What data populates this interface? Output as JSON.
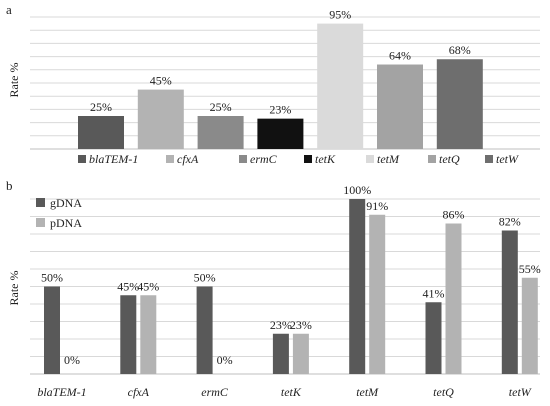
{
  "chart_data": [
    {
      "panel": "a",
      "type": "bar",
      "ylabel": "Rate %",
      "ylim": [
        0,
        100
      ],
      "grid": true,
      "legend_position": "bottom",
      "categories": [
        "blaTEM-1",
        "cfxA",
        "ermC",
        "tetK",
        "tetM",
        "tetQ",
        "tetW"
      ],
      "values": [
        25,
        45,
        25,
        23,
        95,
        64,
        68
      ],
      "value_labels": [
        "25%",
        "45%",
        "25%",
        "23%",
        "95%",
        "64%",
        "68%"
      ],
      "colors": [
        "#595959",
        "#b3b3b3",
        "#8a8a8a",
        "#111111",
        "#dadada",
        "#a3a3a3",
        "#6e6e6e"
      ]
    },
    {
      "panel": "b",
      "type": "bar",
      "ylabel": "Rate %",
      "ylim": [
        0,
        100
      ],
      "grid": true,
      "legend_position": "top-left",
      "categories": [
        "blaTEM-1",
        "cfxA",
        "ermC",
        "tetK",
        "tetM",
        "tetQ",
        "tetW"
      ],
      "series": [
        {
          "name": "gDNA",
          "color": "#595959",
          "values": [
            50,
            45,
            50,
            23,
            100,
            41,
            82
          ],
          "value_labels": [
            "50%",
            "45%",
            "50%",
            "23%",
            "100%",
            "41%",
            "82%"
          ]
        },
        {
          "name": "pDNA",
          "color": "#b3b3b3",
          "values": [
            0,
            45,
            0,
            23,
            91,
            86,
            55
          ],
          "value_labels": [
            "0%",
            "45%",
            "0%",
            "23%",
            "91%",
            "86%",
            "55%"
          ]
        }
      ]
    }
  ]
}
